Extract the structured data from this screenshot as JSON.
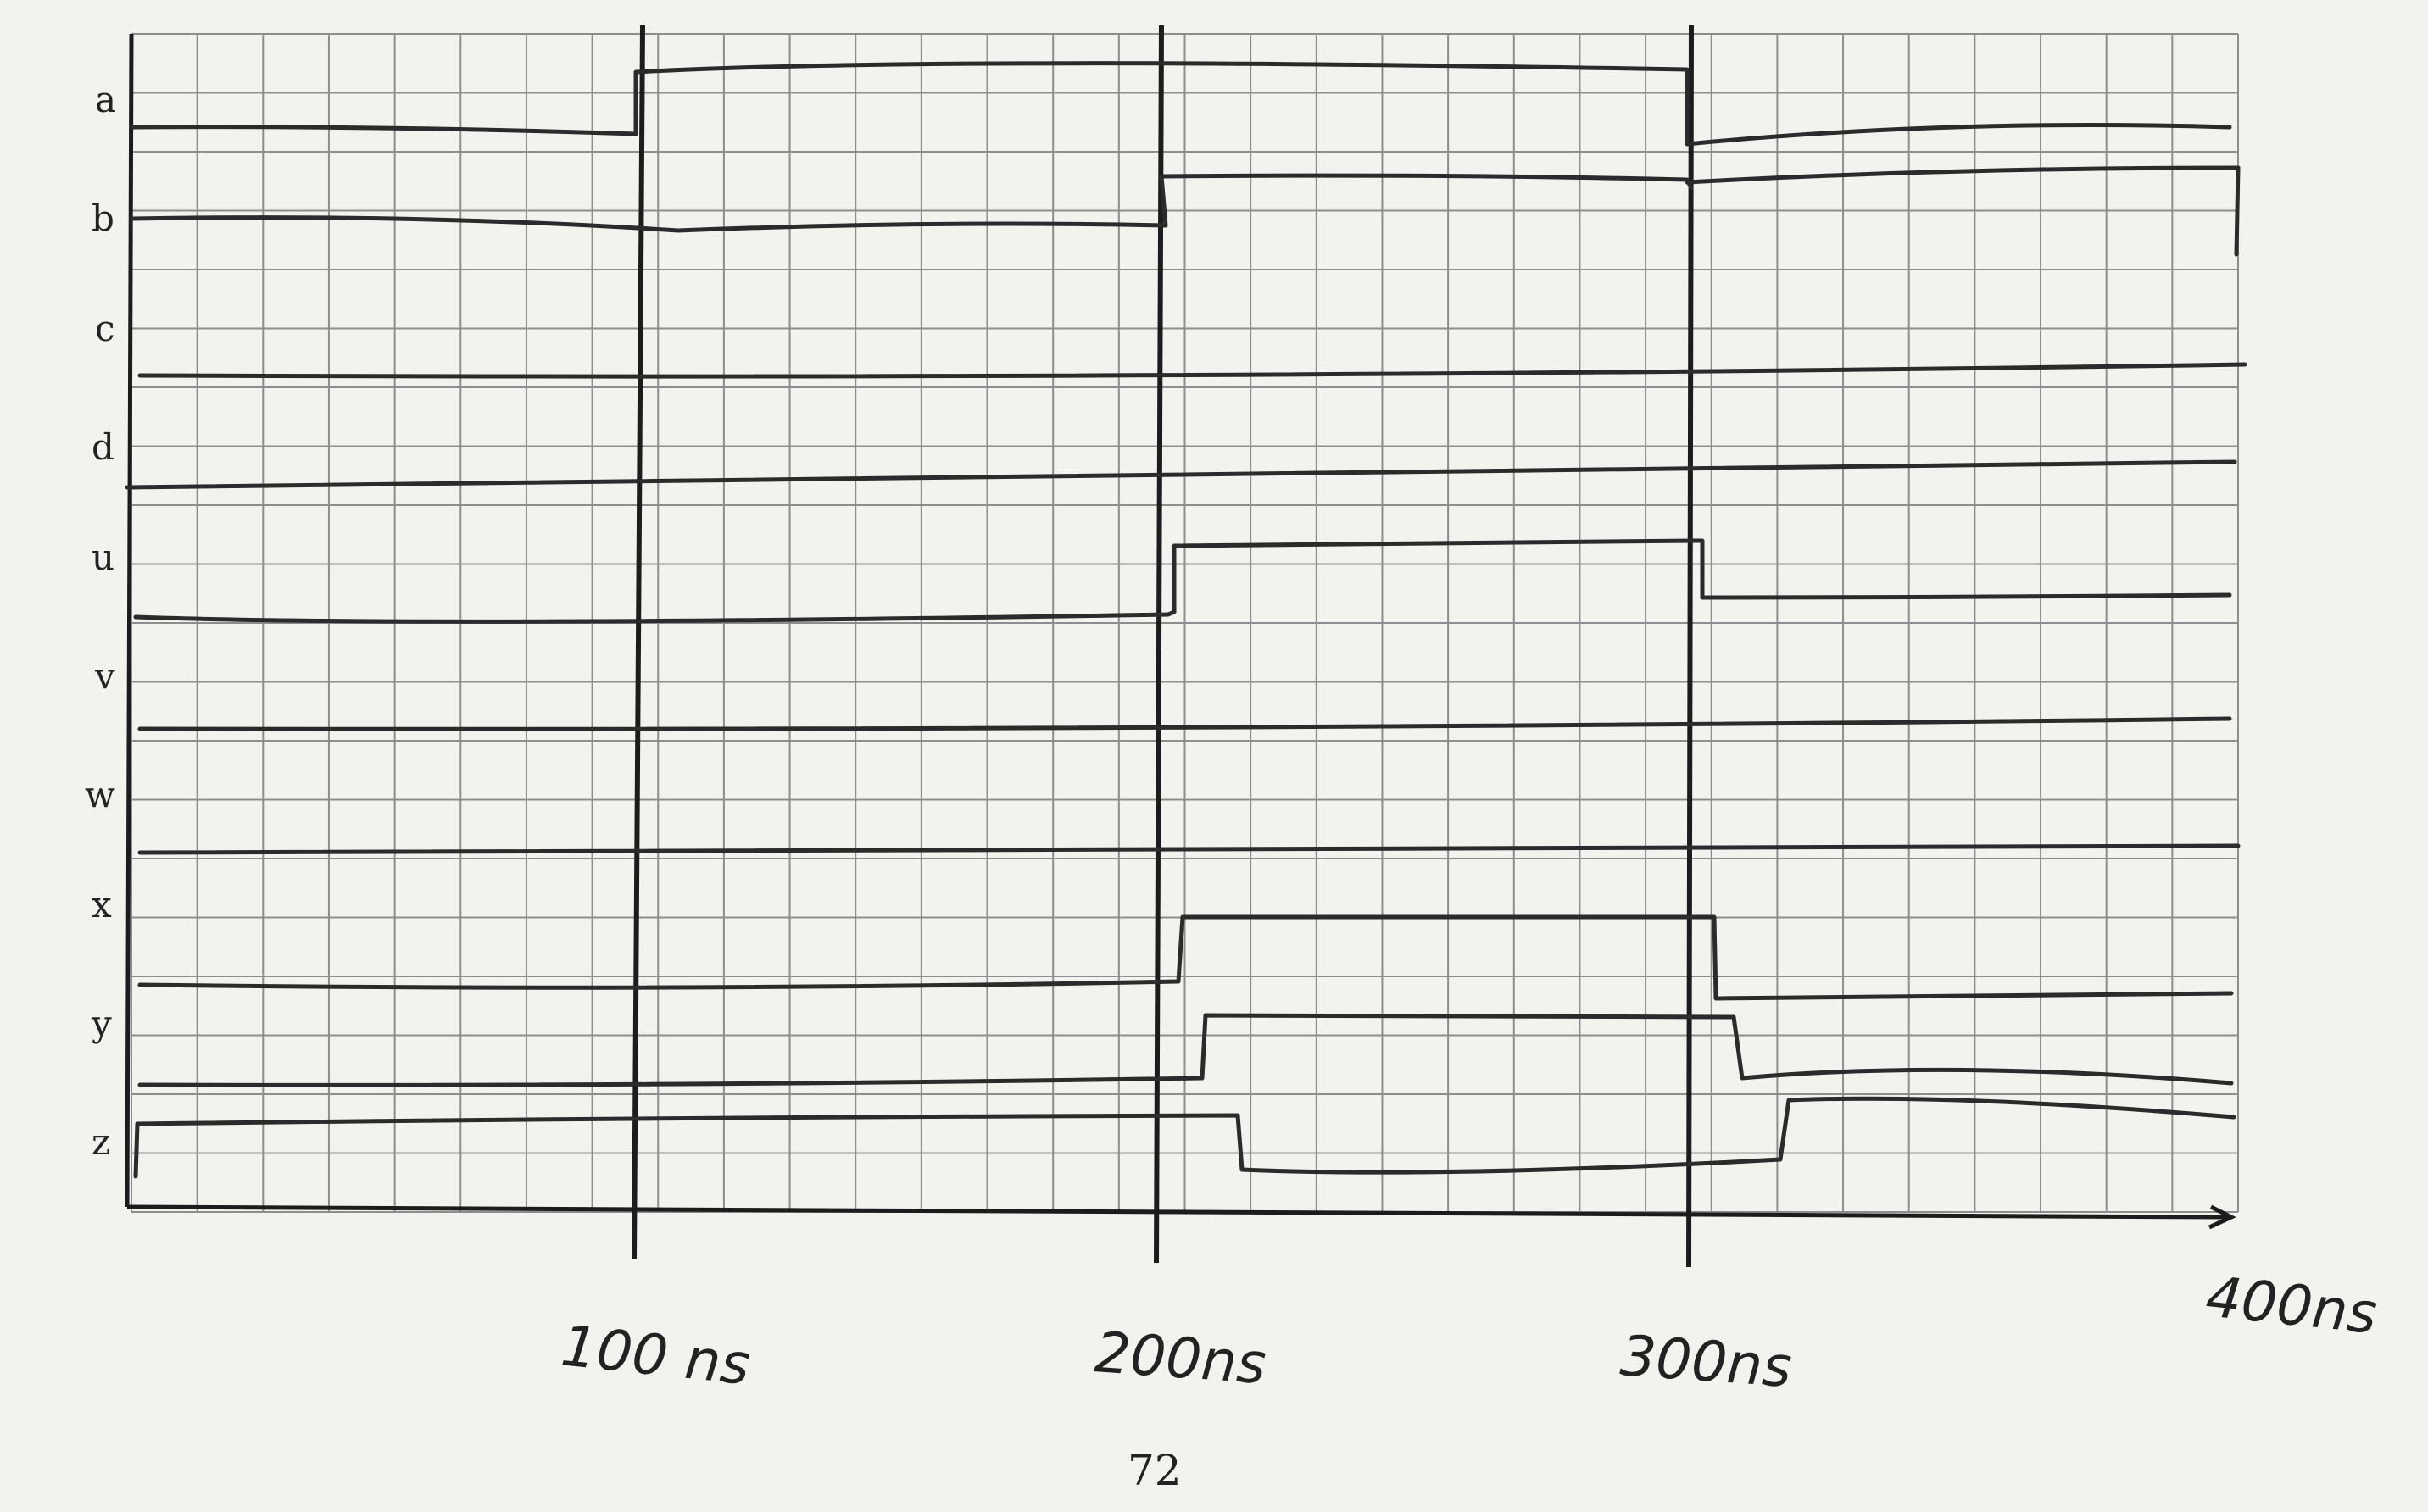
{
  "signals": [
    "a",
    "b",
    "c",
    "d",
    "u",
    "v",
    "w",
    "x",
    "y",
    "z"
  ],
  "time_labels": [
    "100 ns",
    "200ns",
    "300ns",
    "400ns"
  ],
  "page_number": "72",
  "waveforms": {
    "a": [
      [
        0,
        "mid"
      ],
      [
        100,
        "high"
      ],
      [
        300,
        "split"
      ]
    ],
    "b": [
      [
        0,
        "mid"
      ],
      [
        200,
        "high"
      ],
      [
        300,
        "high"
      ]
    ],
    "c": [
      [
        0,
        "flat"
      ]
    ],
    "d": [
      [
        0,
        "flat"
      ]
    ],
    "u": [
      [
        0,
        "low"
      ],
      [
        200,
        "high"
      ],
      [
        300,
        "mid"
      ]
    ],
    "v": [
      [
        0,
        "flat"
      ]
    ],
    "w": [
      [
        0,
        "flat"
      ]
    ],
    "x": [
      [
        0,
        "low"
      ],
      [
        205,
        "high"
      ],
      [
        305,
        "low"
      ]
    ],
    "y": [
      [
        0,
        "low"
      ],
      [
        210,
        "high"
      ],
      [
        310,
        "low"
      ]
    ],
    "z": [
      [
        0,
        "high"
      ],
      [
        215,
        "low"
      ],
      [
        320,
        "high"
      ]
    ]
  }
}
